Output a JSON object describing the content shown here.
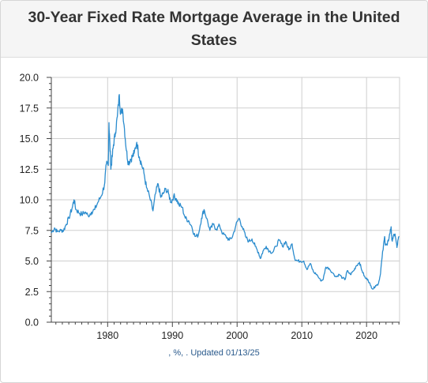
{
  "header": {
    "title": "30-Year Fixed Rate Mortgage Average in the United States"
  },
  "footer": {
    "note": ", %, . Updated 01/13/25"
  },
  "colors": {
    "series": "#2b8cce",
    "grid": "#cfcfcf",
    "axis": "#444444"
  },
  "chart_data": {
    "type": "line",
    "title": "30-Year Fixed Rate Mortgage Average in the United States",
    "xlabel": "",
    "ylabel": "",
    "xlim": [
      1971.3,
      2025.1
    ],
    "ylim": [
      0,
      20
    ],
    "x_ticks": [
      1980,
      1990,
      2000,
      2010,
      2020
    ],
    "x_tick_labels": [
      "1980",
      "1990",
      "2000",
      "2010",
      "2020"
    ],
    "y_ticks": [
      0,
      2.5,
      5,
      7.5,
      10,
      12.5,
      15,
      17.5,
      20
    ],
    "y_tick_labels": [
      "0.0",
      "2.5",
      "5.0",
      "7.5",
      "10.0",
      "12.5",
      "15.0",
      "17.5",
      "20.0"
    ],
    "grid": true,
    "legend": "none",
    "series": [
      {
        "color": "#2b8cce",
        "points": [
          [
            1971.3,
            7.3
          ],
          [
            1971.8,
            7.7
          ],
          [
            1972.2,
            7.4
          ],
          [
            1972.8,
            7.5
          ],
          [
            1973.2,
            7.5
          ],
          [
            1973.6,
            8.0
          ],
          [
            1974.0,
            8.5
          ],
          [
            1974.5,
            9.3
          ],
          [
            1974.8,
            10.0
          ],
          [
            1975.1,
            9.2
          ],
          [
            1975.5,
            9.0
          ],
          [
            1976.0,
            8.8
          ],
          [
            1976.5,
            9.0
          ],
          [
            1977.0,
            8.7
          ],
          [
            1977.5,
            9.0
          ],
          [
            1978.0,
            9.2
          ],
          [
            1978.5,
            9.8
          ],
          [
            1979.0,
            10.3
          ],
          [
            1979.5,
            11.2
          ],
          [
            1979.8,
            12.9
          ],
          [
            1980.1,
            12.8
          ],
          [
            1980.2,
            16.3
          ],
          [
            1980.35,
            14.5
          ],
          [
            1980.5,
            12.5
          ],
          [
            1980.7,
            13.5
          ],
          [
            1980.9,
            14.5
          ],
          [
            1981.2,
            15.5
          ],
          [
            1981.5,
            16.8
          ],
          [
            1981.8,
            18.6
          ],
          [
            1982.0,
            17.0
          ],
          [
            1982.3,
            17.4
          ],
          [
            1982.6,
            15.8
          ],
          [
            1982.9,
            14.0
          ],
          [
            1983.2,
            13.0
          ],
          [
            1983.5,
            13.3
          ],
          [
            1983.8,
            13.5
          ],
          [
            1984.1,
            13.8
          ],
          [
            1984.5,
            14.7
          ],
          [
            1984.9,
            13.5
          ],
          [
            1985.2,
            13.0
          ],
          [
            1985.6,
            12.2
          ],
          [
            1986.0,
            11.0
          ],
          [
            1986.5,
            10.2
          ],
          [
            1987.0,
            9.1
          ],
          [
            1987.4,
            10.5
          ],
          [
            1987.8,
            11.3
          ],
          [
            1988.2,
            10.2
          ],
          [
            1988.6,
            10.5
          ],
          [
            1989.0,
            10.9
          ],
          [
            1989.4,
            10.5
          ],
          [
            1989.8,
            9.8
          ],
          [
            1990.2,
            10.3
          ],
          [
            1990.6,
            10.1
          ],
          [
            1991.0,
            9.6
          ],
          [
            1991.5,
            9.4
          ],
          [
            1992.0,
            8.5
          ],
          [
            1992.5,
            8.3
          ],
          [
            1993.0,
            7.8
          ],
          [
            1993.5,
            7.0
          ],
          [
            1994.0,
            7.1
          ],
          [
            1994.5,
            8.5
          ],
          [
            1994.9,
            9.2
          ],
          [
            1995.3,
            8.5
          ],
          [
            1995.8,
            7.5
          ],
          [
            1996.3,
            8.0
          ],
          [
            1996.8,
            7.6
          ],
          [
            1997.3,
            7.9
          ],
          [
            1997.8,
            7.2
          ],
          [
            1998.3,
            7.0
          ],
          [
            1998.8,
            6.7
          ],
          [
            1999.3,
            7.0
          ],
          [
            1999.8,
            7.9
          ],
          [
            2000.3,
            8.5
          ],
          [
            2000.8,
            7.8
          ],
          [
            2001.3,
            7.0
          ],
          [
            2001.8,
            6.6
          ],
          [
            2002.3,
            6.8
          ],
          [
            2002.8,
            6.2
          ],
          [
            2003.3,
            5.7
          ],
          [
            2003.6,
            5.2
          ],
          [
            2004.0,
            5.8
          ],
          [
            2004.5,
            6.2
          ],
          [
            2005.0,
            5.8
          ],
          [
            2005.5,
            5.7
          ],
          [
            2006.0,
            6.2
          ],
          [
            2006.5,
            6.7
          ],
          [
            2007.0,
            6.2
          ],
          [
            2007.5,
            6.6
          ],
          [
            2008.0,
            5.9
          ],
          [
            2008.5,
            6.4
          ],
          [
            2008.9,
            5.2
          ],
          [
            2009.3,
            5.0
          ],
          [
            2009.8,
            5.0
          ],
          [
            2010.3,
            5.0
          ],
          [
            2010.8,
            4.3
          ],
          [
            2011.3,
            4.8
          ],
          [
            2011.8,
            4.1
          ],
          [
            2012.3,
            3.9
          ],
          [
            2012.9,
            3.4
          ],
          [
            2013.3,
            3.5
          ],
          [
            2013.7,
            4.5
          ],
          [
            2014.2,
            4.4
          ],
          [
            2014.8,
            4.0
          ],
          [
            2015.3,
            3.7
          ],
          [
            2015.8,
            3.9
          ],
          [
            2016.3,
            3.6
          ],
          [
            2016.7,
            3.5
          ],
          [
            2017.0,
            4.2
          ],
          [
            2017.5,
            3.9
          ],
          [
            2018.0,
            4.2
          ],
          [
            2018.4,
            4.6
          ],
          [
            2018.9,
            4.9
          ],
          [
            2019.3,
            4.2
          ],
          [
            2019.8,
            3.6
          ],
          [
            2020.2,
            3.5
          ],
          [
            2020.6,
            3.0
          ],
          [
            2021.0,
            2.7
          ],
          [
            2021.4,
            3.0
          ],
          [
            2021.8,
            3.1
          ],
          [
            2022.1,
            3.8
          ],
          [
            2022.4,
            5.3
          ],
          [
            2022.8,
            7.0
          ],
          [
            2022.9,
            6.3
          ],
          [
            2023.2,
            6.3
          ],
          [
            2023.5,
            7.0
          ],
          [
            2023.8,
            7.8
          ],
          [
            2023.9,
            6.7
          ],
          [
            2024.1,
            6.9
          ],
          [
            2024.4,
            7.2
          ],
          [
            2024.7,
            6.1
          ],
          [
            2024.9,
            6.8
          ],
          [
            2025.05,
            7.0
          ]
        ]
      }
    ]
  }
}
